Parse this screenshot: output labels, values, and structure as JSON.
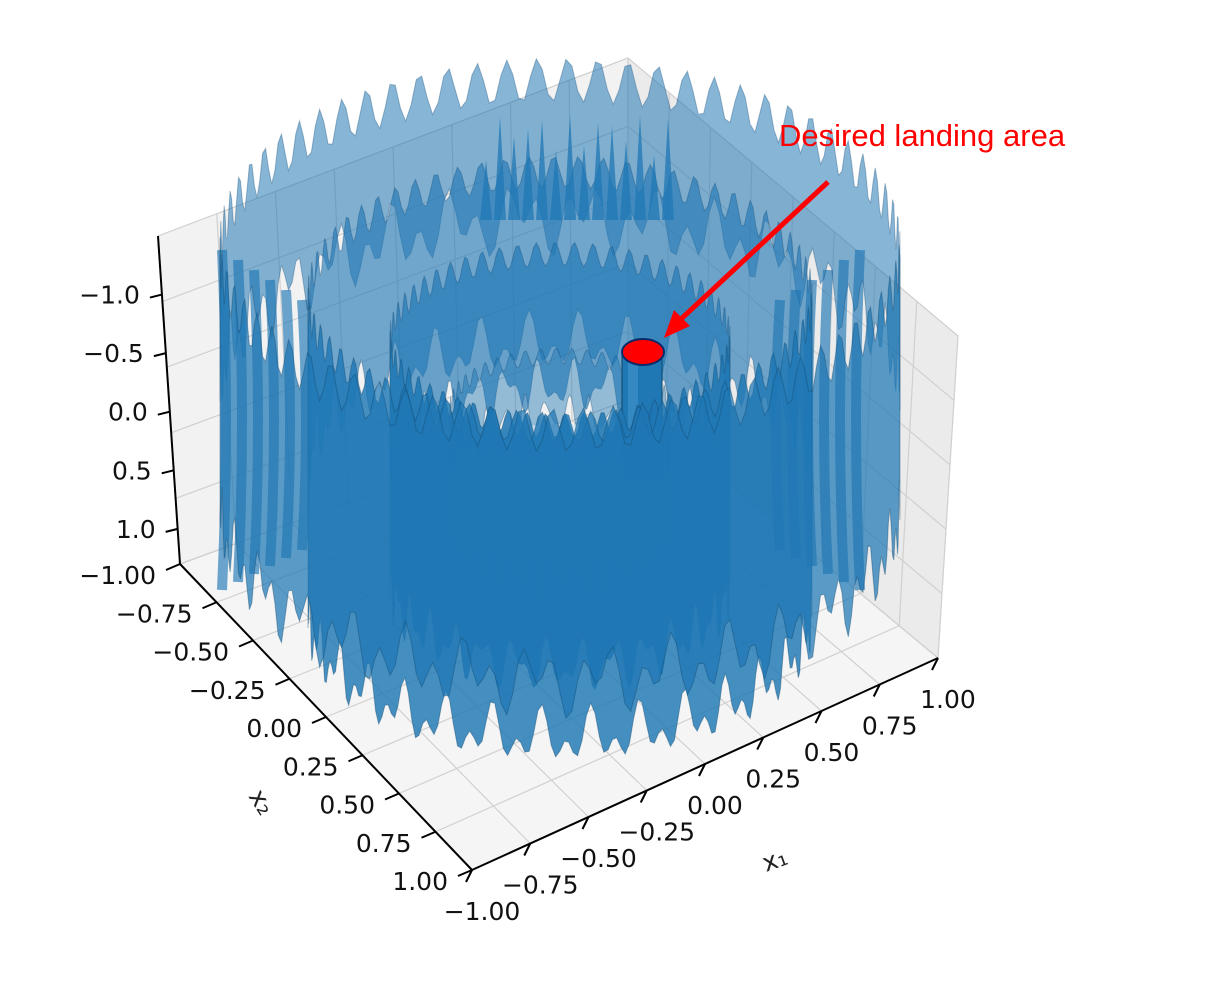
{
  "chart_data": {
    "type": "surface3d",
    "x": {
      "label": "x₁",
      "ticks": [
        -1.0,
        -0.75,
        -0.5,
        -0.25,
        0.0,
        0.25,
        0.5,
        0.75,
        1.0
      ],
      "tick_labels": [
        "−1.00",
        "−0.75",
        "−0.50",
        "−0.25",
        "0.00",
        "0.25",
        "0.50",
        "0.75",
        "1.00"
      ],
      "range": [
        -1.0,
        1.0
      ]
    },
    "y": {
      "label": "x₂",
      "ticks": [
        -1.0,
        -0.75,
        -0.5,
        -0.25,
        0.0,
        0.25,
        0.5,
        0.75,
        1.0
      ],
      "tick_labels": [
        "−1.00",
        "−0.75",
        "−0.50",
        "−0.25",
        "0.00",
        "0.25",
        "0.50",
        "0.75",
        "1.00"
      ],
      "range": [
        -1.0,
        1.0
      ]
    },
    "z": {
      "label": "",
      "ticks": [
        -1.0,
        -0.5,
        0.0,
        0.5,
        1.0
      ],
      "tick_labels": [
        "−1.0",
        "−0.5",
        "0.0",
        "0.5",
        "1.0"
      ],
      "range": [
        1.3,
        -1.5
      ],
      "inverted": true
    },
    "grid": true,
    "surface_color": "#1f77b4",
    "surface_description": "radially symmetric oscillating surface forming concentric ring-shaped walls around a central column",
    "annotation": {
      "text": "Desired landing area",
      "color": "#ff0000",
      "marker": {
        "x": 0.0,
        "y": 0.0,
        "z": -0.75
      }
    }
  }
}
